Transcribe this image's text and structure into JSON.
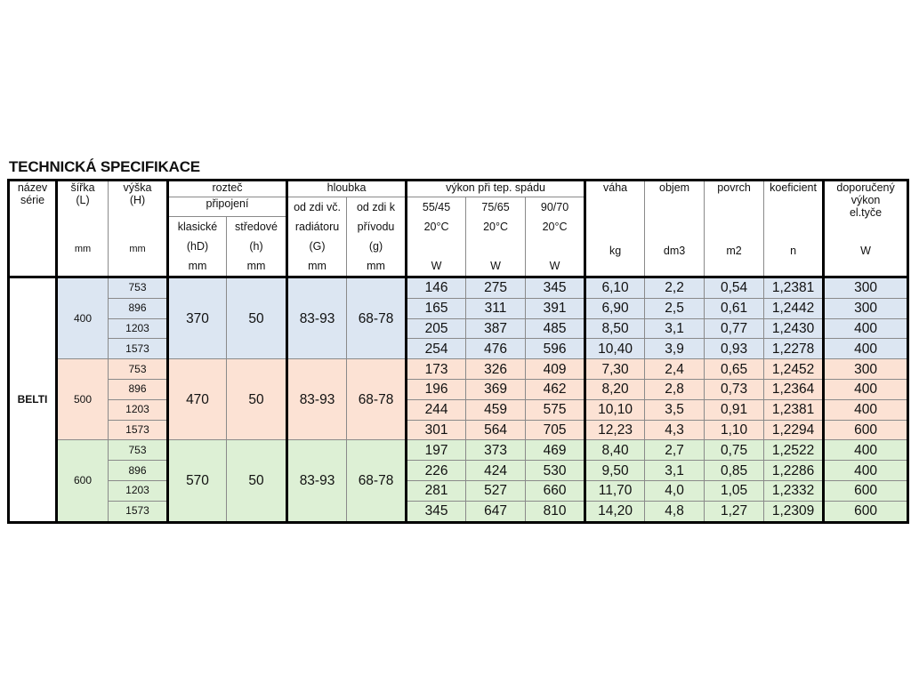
{
  "title": "TECHNICKÁ SPECIFIKACE",
  "header": {
    "nazev": [
      "název",
      "série"
    ],
    "sirka": [
      "šířka",
      "(L)"
    ],
    "sirka_unit": "mm",
    "vyska": [
      "výška",
      "(H)"
    ],
    "vyska_unit": "mm",
    "roztec": "rozteč",
    "pripojeni": "připojení",
    "klasicke": [
      "klasické",
      "(hD)",
      "mm"
    ],
    "stredove": [
      "středové",
      "(h)",
      "mm"
    ],
    "hloubka": "hloubka",
    "od_zdi_vc": [
      "od zdi  vč.",
      "radiátoru",
      "(G)",
      "mm"
    ],
    "od_zdi_k": [
      "od zdi  k",
      "přívodu",
      "(g)",
      "mm"
    ],
    "vykon": "výkon při tep.  spádu",
    "v5545": [
      "55/45",
      "20°C",
      "W"
    ],
    "v7565": [
      "75/65",
      "20°C",
      "W"
    ],
    "v9070": [
      "90/70",
      "20°C",
      "W"
    ],
    "vaha": [
      "váha",
      "kg"
    ],
    "objem": [
      "objem",
      "dm3"
    ],
    "povrch": [
      "povrch",
      "m2"
    ],
    "koeficient": [
      "koeficient",
      "n"
    ],
    "doporuceny": [
      "doporučený",
      "výkon",
      "el.tyče",
      "W"
    ]
  },
  "series_name": "BELTI",
  "colors": {
    "400": "#dce6f2",
    "500": "#fce2d4",
    "600": "#ddf0d5"
  },
  "groups": [
    {
      "sirka": "400",
      "roztec_hD": "370",
      "roztec_h": "50",
      "hloubka_G": "83-93",
      "hloubka_g": "68-78",
      "rows": [
        [
          "753",
          "146",
          "275",
          "345",
          "6,10",
          "2,2",
          "0,54",
          "1,2381",
          "300"
        ],
        [
          "896",
          "165",
          "311",
          "391",
          "6,90",
          "2,5",
          "0,61",
          "1,2442",
          "300"
        ],
        [
          "1203",
          "205",
          "387",
          "485",
          "8,50",
          "3,1",
          "0,77",
          "1,2430",
          "400"
        ],
        [
          "1573",
          "254",
          "476",
          "596",
          "10,40",
          "3,9",
          "0,93",
          "1,2278",
          "400"
        ]
      ]
    },
    {
      "sirka": "500",
      "roztec_hD": "470",
      "roztec_h": "50",
      "hloubka_G": "83-93",
      "hloubka_g": "68-78",
      "rows": [
        [
          "753",
          "173",
          "326",
          "409",
          "7,30",
          "2,4",
          "0,65",
          "1,2452",
          "300"
        ],
        [
          "896",
          "196",
          "369",
          "462",
          "8,20",
          "2,8",
          "0,73",
          "1,2364",
          "400"
        ],
        [
          "1203",
          "244",
          "459",
          "575",
          "10,10",
          "3,5",
          "0,91",
          "1,2381",
          "400"
        ],
        [
          "1573",
          "301",
          "564",
          "705",
          "12,23",
          "4,3",
          "1,10",
          "1,2294",
          "600"
        ]
      ]
    },
    {
      "sirka": "600",
      "roztec_hD": "570",
      "roztec_h": "50",
      "hloubka_G": "83-93",
      "hloubka_g": "68-78",
      "rows": [
        [
          "753",
          "197",
          "373",
          "469",
          "8,40",
          "2,7",
          "0,75",
          "1,2522",
          "400"
        ],
        [
          "896",
          "226",
          "424",
          "530",
          "9,50",
          "3,1",
          "0,85",
          "1,2286",
          "400"
        ],
        [
          "1203",
          "281",
          "527",
          "660",
          "11,70",
          "4,0",
          "1,05",
          "1,2332",
          "600"
        ],
        [
          "1573",
          "345",
          "647",
          "810",
          "14,20",
          "4,8",
          "1,27",
          "1,2309",
          "600"
        ]
      ]
    }
  ]
}
